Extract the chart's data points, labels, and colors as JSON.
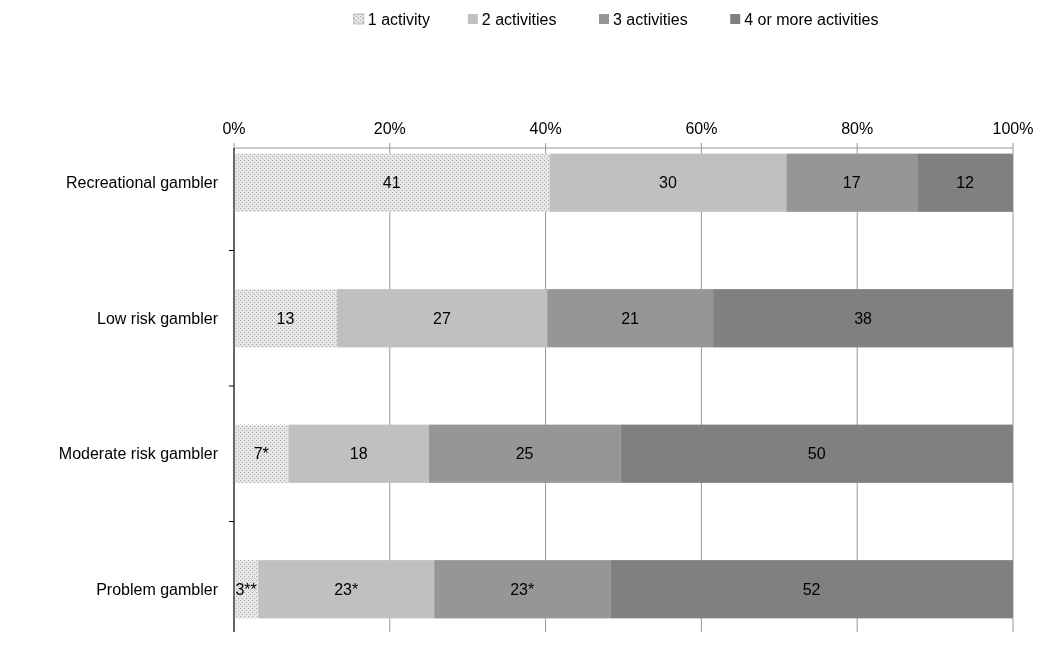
{
  "chart_data": {
    "type": "bar",
    "orientation": "horizontal",
    "stacked": true,
    "categories": [
      "Recreational gambler",
      "Low  risk gambler",
      "Moderate risk gambler",
      "Problem gambler"
    ],
    "series": [
      {
        "name": "1 activity",
        "color": "#e6e6e6",
        "values": [
          40.5,
          13.2,
          7,
          3.1
        ],
        "value_labels": [
          "41",
          "13",
          "7*",
          "3**"
        ]
      },
      {
        "name": "2 activities",
        "color": "#c0c0c0",
        "values": [
          30.4,
          27,
          18,
          22.6
        ],
        "value_labels": [
          "30",
          "27",
          "18",
          "23*"
        ]
      },
      {
        "name": "3 activities",
        "color": "#969696",
        "values": [
          16.8,
          21.3,
          24.6,
          22.6
        ],
        "value_labels": [
          "17",
          "21",
          "25",
          "23*"
        ]
      },
      {
        "name": "4 or more activities",
        "color": "#808080",
        "values": [
          12.3,
          38.5,
          50.4,
          51.7
        ],
        "value_labels": [
          "12",
          "38",
          "50",
          "52"
        ]
      }
    ],
    "xlim": [
      0,
      100
    ],
    "xticks": [
      {
        "value": 0,
        "label": "0%"
      },
      {
        "value": 20,
        "label": "20%"
      },
      {
        "value": 40,
        "label": "40%"
      },
      {
        "value": 60,
        "label": "60%"
      },
      {
        "value": 80,
        "label": "80%"
      },
      {
        "value": 100,
        "label": "100%"
      }
    ],
    "grid": "x",
    "legend": "top"
  }
}
